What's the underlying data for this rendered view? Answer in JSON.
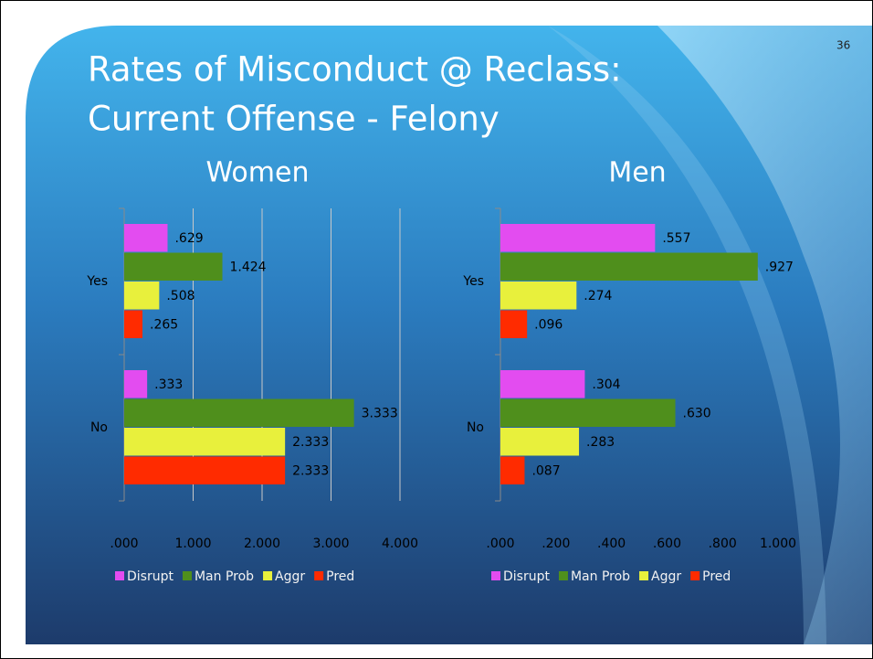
{
  "slide": {
    "title_lines": [
      "Rates of Misconduct @ Reclass:",
      "Current Offense - Felony"
    ],
    "page_number": "36"
  },
  "chart_data": [
    {
      "type": "bar",
      "orientation": "horizontal",
      "title": "Women",
      "categories": [
        "Yes",
        "No"
      ],
      "series": [
        {
          "name": "Disrupt",
          "color": "#e34cf0",
          "values": [
            0.629,
            0.333
          ],
          "value_labels": [
            ".629",
            ".333"
          ]
        },
        {
          "name": "Man Prob",
          "color": "#4f8f1c",
          "values": [
            1.424,
            3.333
          ],
          "value_labels": [
            "1.424",
            "3.333"
          ]
        },
        {
          "name": "Aggr",
          "color": "#e8f03c",
          "values": [
            0.508,
            2.333
          ],
          "value_labels": [
            ".508",
            "2.333"
          ]
        },
        {
          "name": "Pred",
          "color": "#ff2b00",
          "values": [
            0.265,
            2.333
          ],
          "value_labels": [
            ".265",
            "2.333"
          ]
        }
      ],
      "xlim": [
        0,
        4
      ],
      "xticks": [
        {
          "value": 0,
          "label": ".000"
        },
        {
          "value": 1,
          "label": "1.000"
        },
        {
          "value": 2,
          "label": "2.000"
        },
        {
          "value": 3,
          "label": "3.000"
        },
        {
          "value": 4,
          "label": "4.000"
        }
      ],
      "grid": true,
      "legend": "bottom"
    },
    {
      "type": "bar",
      "orientation": "horizontal",
      "title": "Men",
      "categories": [
        "Yes",
        "No"
      ],
      "series": [
        {
          "name": "Disrupt",
          "color": "#e34cf0",
          "values": [
            0.557,
            0.304
          ],
          "value_labels": [
            ".557",
            ".304"
          ]
        },
        {
          "name": "Man Prob",
          "color": "#4f8f1c",
          "values": [
            0.927,
            0.63
          ],
          "value_labels": [
            ".927",
            ".630"
          ]
        },
        {
          "name": "Aggr",
          "color": "#e8f03c",
          "values": [
            0.274,
            0.283
          ],
          "value_labels": [
            ".274",
            ".283"
          ]
        },
        {
          "name": "Pred",
          "color": "#ff2b00",
          "values": [
            0.096,
            0.087
          ],
          "value_labels": [
            ".096",
            ".087"
          ]
        }
      ],
      "xlim": [
        0,
        1
      ],
      "xticks": [
        {
          "value": 0,
          "label": ".000"
        },
        {
          "value": 0.2,
          "label": ".200"
        },
        {
          "value": 0.4,
          "label": ".400"
        },
        {
          "value": 0.6,
          "label": ".600"
        },
        {
          "value": 0.8,
          "label": ".800"
        },
        {
          "value": 1,
          "label": "1.000"
        }
      ],
      "grid": false,
      "legend": "bottom"
    }
  ]
}
